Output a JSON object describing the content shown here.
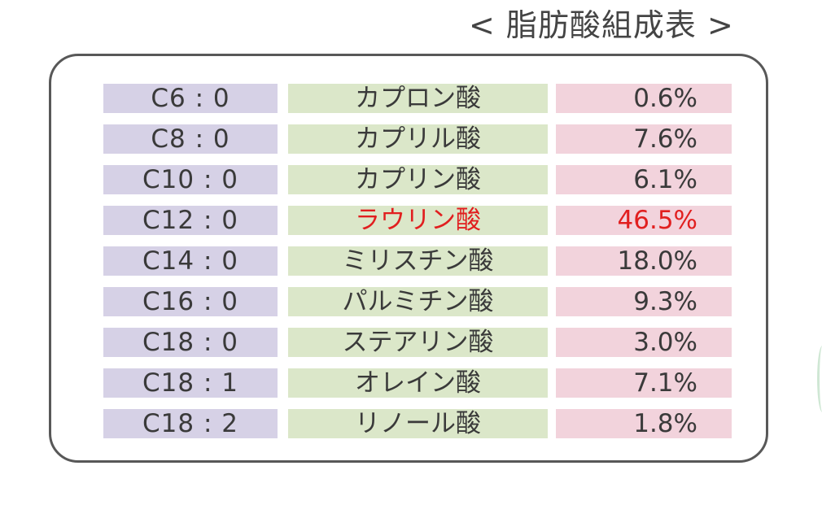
{
  "title": "< 脂肪酸組成表 >",
  "table": {
    "rows": [
      {
        "carbon": "C6 : 0",
        "name": "カプロン酸",
        "percent": "0.6%"
      },
      {
        "carbon": "C8 : 0",
        "name": "カプリル酸",
        "percent": "7.6%"
      },
      {
        "carbon": "C10 : 0",
        "name": "カプリン酸",
        "percent": "6.1%"
      },
      {
        "carbon": "C12 : 0",
        "name": "ラウリン酸",
        "percent": "46.5%",
        "highlight": true
      },
      {
        "carbon": "C14 : 0",
        "name": "ミリスチン酸",
        "percent": "18.0%"
      },
      {
        "carbon": "C16 : 0",
        "name": "パルミチン酸",
        "percent": "9.3%"
      },
      {
        "carbon": "C18 : 0",
        "name": "ステアリン酸",
        "percent": "3.0%"
      },
      {
        "carbon": "C18 : 1",
        "name": "オレイン酸",
        "percent": "7.1%"
      },
      {
        "carbon": "C18 : 2",
        "name": "リノール酸",
        "percent": "1.8%"
      }
    ]
  },
  "colors": {
    "carbon_bg": "#d6d1e6",
    "name_bg": "#dbe7c9",
    "percent_bg": "#f2d3dc",
    "highlight_text": "#e11f1f",
    "border": "#585858"
  }
}
